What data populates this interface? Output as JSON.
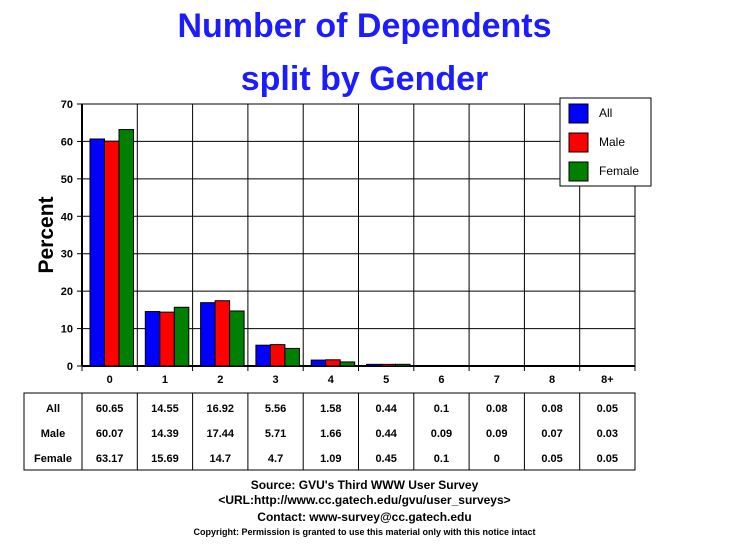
{
  "title_line1": "Number of Dependents",
  "title_line2": "split by Gender",
  "chart_data": {
    "type": "bar",
    "title": "Number of Dependents split by Gender",
    "xlabel": "",
    "ylabel": "Percent",
    "ylim": [
      0,
      70
    ],
    "yticks": [
      "0",
      "10",
      "20",
      "30",
      "40",
      "50",
      "60",
      "70"
    ],
    "categories": [
      "0",
      "1",
      "2",
      "3",
      "4",
      "5",
      "6",
      "7",
      "8",
      "8+"
    ],
    "legend_position": "top-right",
    "grid": true,
    "series": [
      {
        "name": "All",
        "color": "#0000ff",
        "values": [
          60.65,
          14.55,
          16.92,
          5.56,
          1.58,
          0.44,
          0.1,
          0.08,
          0.08,
          0.05
        ],
        "labels": [
          "60.65",
          "14.55",
          "16.92",
          "5.56",
          "1.58",
          "0.44",
          "0.1",
          "0.08",
          "0.08",
          "0.05"
        ]
      },
      {
        "name": "Male",
        "color": "#ff0000",
        "values": [
          60.07,
          14.39,
          17.44,
          5.71,
          1.66,
          0.44,
          0.09,
          0.09,
          0.07,
          0.03
        ],
        "labels": [
          "60.07",
          "14.39",
          "17.44",
          "5.71",
          "1.66",
          "0.44",
          "0.09",
          "0.09",
          "0.07",
          "0.03"
        ]
      },
      {
        "name": "Female",
        "color": "#008000",
        "values": [
          63.17,
          15.69,
          14.7,
          4.7,
          1.09,
          0.45,
          0.1,
          0,
          0.05,
          0.05
        ],
        "labels": [
          "63.17",
          "15.69",
          "14.7",
          "4.7",
          "1.09",
          "0.45",
          "0.1",
          "0",
          "0.05",
          "0.05"
        ]
      }
    ]
  },
  "footer": {
    "source": "Source: GVU's Third WWW User Survey",
    "url": "<URL:http://www.cc.gatech.edu/gvu/user_surveys>",
    "contact": "Contact: www-survey@cc.gatech.edu",
    "copyright": "Copyright: Permission is granted to use this material only with this notice intact"
  }
}
